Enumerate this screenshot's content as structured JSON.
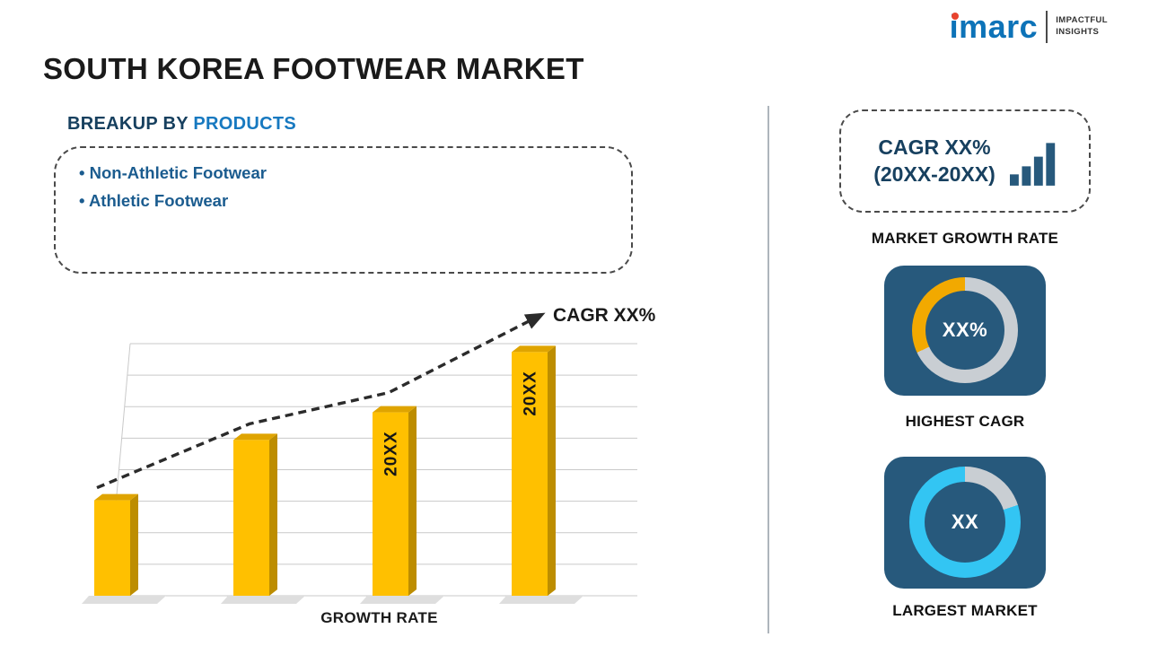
{
  "page": {
    "title": "SOUTH KOREA FOOTWEAR MARKET"
  },
  "logo": {
    "brand": "imarc",
    "tagline_line1": "IMPACTFUL",
    "tagline_line2": "INSIGHTS"
  },
  "breakup": {
    "heading_prefix": "BREAKUP BY",
    "heading_highlight": "PRODUCTS",
    "items": [
      "Non-Athletic Footwear",
      "Athletic Footwear"
    ]
  },
  "chart_data": {
    "type": "bar",
    "title": "",
    "categories": [
      "",
      "",
      "20XX",
      "20XX"
    ],
    "values": [
      38,
      62,
      73,
      97
    ],
    "ylim": [
      0,
      100
    ],
    "bar_color": "#FFC000",
    "trend_label": "CAGR XX%",
    "xlabel": "GROWTH RATE",
    "grid": true,
    "legend": "none"
  },
  "sidebar": {
    "growth_box": {
      "line1": "CAGR XX%",
      "line2": "(20XX-20XX)"
    },
    "growth_label": "MARKET GROWTH RATE",
    "highest_cagr": {
      "value": "XX%",
      "label": "HIGHEST CAGR",
      "accent": "#F2A900"
    },
    "largest_market": {
      "value": "XX",
      "label": "LARGEST MARKET",
      "accent": "#33C5F3"
    }
  },
  "colors": {
    "navy_text": "#17405F",
    "blue_accent": "#1779C0",
    "bullet_text": "#1B5C8F",
    "panel_navy": "#27597C",
    "ring_gray": "#C9CED3",
    "logo_blue": "#0D73B8",
    "logo_red": "#E8432E"
  }
}
